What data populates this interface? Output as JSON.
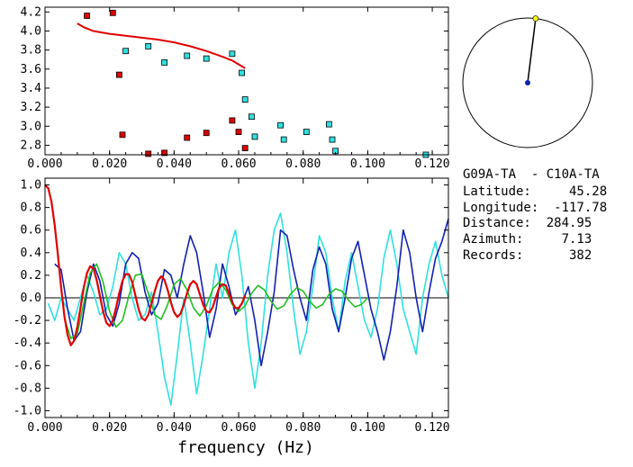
{
  "info": {
    "pair": "G09A-TA  - C10A-TA",
    "lines": [
      "Latitude:     45.28",
      "Longitude:  -117.78",
      "Distance:  284.95",
      "Azimuth:     7.13",
      "Records:      382"
    ]
  },
  "colors": {
    "red": "#e00000",
    "cyan": "#30e0e0",
    "blue": "#1020b0",
    "green": "#20c020",
    "compass_tip": "#ffff00",
    "compass_center": "#1020b0"
  },
  "compass": {
    "azimuth_deg": 7.13
  },
  "chart_data": [
    {
      "type": "scatter",
      "title": "",
      "xlim": [
        0,
        0.125
      ],
      "ylim": [
        2.7,
        4.25
      ],
      "x_ticks": [
        "0.000",
        "0.020",
        "0.040",
        "0.060",
        "0.080",
        "0.100",
        "0.120"
      ],
      "y_ticks": [
        "2.8",
        "3.0",
        "3.2",
        "3.4",
        "3.6",
        "3.8",
        "4.0",
        "4.2"
      ],
      "series": [
        {
          "kind": "points",
          "color": "red",
          "points": [
            [
              0.013,
              4.16
            ],
            [
              0.021,
              4.19
            ],
            [
              0.023,
              3.54
            ],
            [
              0.024,
              2.91
            ],
            [
              0.032,
              2.71
            ],
            [
              0.037,
              2.72
            ],
            [
              0.044,
              2.88
            ],
            [
              0.05,
              2.93
            ],
            [
              0.058,
              3.06
            ],
            [
              0.06,
              2.94
            ],
            [
              0.062,
              2.77
            ]
          ]
        },
        {
          "kind": "points",
          "color": "cyan",
          "points": [
            [
              0.025,
              3.79
            ],
            [
              0.032,
              3.84
            ],
            [
              0.037,
              3.67
            ],
            [
              0.044,
              3.74
            ],
            [
              0.05,
              3.71
            ],
            [
              0.058,
              3.76
            ],
            [
              0.061,
              3.56
            ],
            [
              0.062,
              3.28
            ],
            [
              0.064,
              3.1
            ],
            [
              0.065,
              2.89
            ],
            [
              0.073,
              3.01
            ],
            [
              0.074,
              2.86
            ],
            [
              0.081,
              2.94
            ],
            [
              0.088,
              3.02
            ],
            [
              0.089,
              2.86
            ],
            [
              0.09,
              2.74
            ],
            [
              0.118,
              2.7
            ]
          ]
        },
        {
          "kind": "line",
          "color": "red",
          "points": [
            [
              0.01,
              4.08
            ],
            [
              0.012,
              4.04
            ],
            [
              0.015,
              4.0
            ],
            [
              0.02,
              3.97
            ],
            [
              0.025,
              3.95
            ],
            [
              0.03,
              3.93
            ],
            [
              0.035,
              3.91
            ],
            [
              0.04,
              3.88
            ],
            [
              0.045,
              3.84
            ],
            [
              0.05,
              3.79
            ],
            [
              0.055,
              3.73
            ],
            [
              0.058,
              3.69
            ],
            [
              0.06,
              3.65
            ],
            [
              0.062,
              3.61
            ]
          ]
        }
      ]
    },
    {
      "type": "line",
      "xlabel": "frequency (Hz)",
      "xlim": [
        0,
        0.125
      ],
      "ylim": [
        -1.06,
        1.06
      ],
      "x_ticks": [
        "0.000",
        "0.020",
        "0.040",
        "0.060",
        "0.080",
        "0.100",
        "0.120"
      ],
      "y_ticks": [
        "1.0",
        "0.8",
        "0.6",
        "0.4",
        "0.2",
        "0.0",
        "-0.2",
        "-0.4",
        "-0.6",
        "-0.8",
        "-1.0"
      ],
      "series": [
        {
          "color": "red",
          "x": [
            0,
            0.001,
            0.002,
            0.003,
            0.004,
            0.005,
            0.006,
            0.007,
            0.008,
            0.009,
            0.01,
            0.011,
            0.012,
            0.013,
            0.014,
            0.015,
            0.016,
            0.017,
            0.018,
            0.019,
            0.02,
            0.021,
            0.022,
            0.023,
            0.024,
            0.025,
            0.026,
            0.027,
            0.028,
            0.029,
            0.03,
            0.031,
            0.032,
            0.033,
            0.034,
            0.035,
            0.036,
            0.037,
            0.038,
            0.039,
            0.04,
            0.041,
            0.042,
            0.043,
            0.044,
            0.045,
            0.046,
            0.047,
            0.048,
            0.049,
            0.05,
            0.051,
            0.052,
            0.053,
            0.054,
            0.055,
            0.056,
            0.057,
            0.058,
            0.059,
            0.06,
            0.061,
            0.062
          ],
          "y": [
            1.0,
            0.97,
            0.85,
            0.64,
            0.38,
            0.09,
            -0.16,
            -0.33,
            -0.42,
            -0.38,
            -0.26,
            -0.09,
            0.09,
            0.22,
            0.28,
            0.26,
            0.16,
            0.02,
            -0.12,
            -0.22,
            -0.25,
            -0.2,
            -0.09,
            0.04,
            0.15,
            0.21,
            0.21,
            0.14,
            0.02,
            -0.1,
            -0.18,
            -0.2,
            -0.15,
            -0.05,
            0.06,
            0.15,
            0.19,
            0.16,
            0.07,
            -0.04,
            -0.13,
            -0.17,
            -0.14,
            -0.06,
            0.04,
            0.12,
            0.15,
            0.12,
            0.03,
            -0.06,
            -0.12,
            -0.13,
            -0.08,
            0.01,
            0.09,
            0.12,
            0.11,
            0.04,
            -0.04,
            -0.09,
            -0.09,
            -0.05,
            0.02
          ]
        },
        {
          "color": "green",
          "x": [
            0.006,
            0.008,
            0.01,
            0.012,
            0.014,
            0.016,
            0.018,
            0.02,
            0.022,
            0.024,
            0.026,
            0.028,
            0.03,
            0.032,
            0.034,
            0.036,
            0.038,
            0.04,
            0.042,
            0.044,
            0.046,
            0.048,
            0.05,
            0.052,
            0.054,
            0.056,
            0.058,
            0.06,
            0.062,
            0.064,
            0.066,
            0.068,
            0.07,
            0.072,
            0.074,
            0.076,
            0.078,
            0.08,
            0.082,
            0.084,
            0.086,
            0.088,
            0.09,
            0.092,
            0.094,
            0.096,
            0.098,
            0.1
          ],
          "y": [
            -0.18,
            -0.36,
            -0.32,
            -0.05,
            0.22,
            0.3,
            0.14,
            -0.12,
            -0.26,
            -0.2,
            0.02,
            0.2,
            0.21,
            0.04,
            -0.15,
            -0.19,
            -0.06,
            0.12,
            0.17,
            0.07,
            -0.09,
            -0.16,
            -0.07,
            0.08,
            0.14,
            0.07,
            -0.06,
            -0.12,
            -0.07,
            0.04,
            0.11,
            0.07,
            -0.03,
            -0.1,
            -0.07,
            0.03,
            0.09,
            0.06,
            -0.03,
            -0.09,
            -0.06,
            0.03,
            0.08,
            0.06,
            -0.02,
            -0.08,
            -0.06,
            0.0
          ]
        },
        {
          "color": "blue",
          "x": [
            0.003,
            0.005,
            0.007,
            0.009,
            0.011,
            0.013,
            0.015,
            0.017,
            0.019,
            0.021,
            0.023,
            0.025,
            0.027,
            0.029,
            0.031,
            0.033,
            0.035,
            0.037,
            0.039,
            0.041,
            0.043,
            0.045,
            0.047,
            0.049,
            0.051,
            0.053,
            0.055,
            0.057,
            0.059,
            0.061,
            0.063,
            0.065,
            0.067,
            0.069,
            0.071,
            0.073,
            0.075,
            0.077,
            0.079,
            0.081,
            0.083,
            0.085,
            0.087,
            0.089,
            0.091,
            0.093,
            0.095,
            0.097,
            0.099,
            0.101,
            0.103,
            0.105,
            0.107,
            0.109,
            0.111,
            0.113,
            0.115,
            0.117,
            0.119,
            0.121,
            0.123,
            0.125
          ],
          "y": [
            0.3,
            0.25,
            -0.1,
            -0.38,
            -0.3,
            0.05,
            0.3,
            0.15,
            -0.15,
            -0.25,
            -0.05,
            0.3,
            0.4,
            0.35,
            0.05,
            -0.15,
            -0.05,
            0.25,
            0.2,
            0.0,
            0.3,
            0.55,
            0.4,
            0.05,
            -0.35,
            -0.1,
            0.3,
            0.1,
            -0.15,
            -0.05,
            0.1,
            -0.2,
            -0.6,
            -0.3,
            0.05,
            0.6,
            0.55,
            0.25,
            0.0,
            -0.2,
            0.25,
            0.45,
            0.3,
            -0.1,
            -0.3,
            0.0,
            0.35,
            0.5,
            0.2,
            -0.1,
            -0.3,
            -0.55,
            -0.3,
            0.1,
            0.6,
            0.4,
            0.0,
            -0.3,
            0.05,
            0.35,
            0.5,
            0.7
          ]
        },
        {
          "color": "cyan",
          "x": [
            0.001,
            0.003,
            0.005,
            0.007,
            0.009,
            0.011,
            0.013,
            0.015,
            0.017,
            0.019,
            0.021,
            0.023,
            0.025,
            0.027,
            0.029,
            0.031,
            0.033,
            0.035,
            0.037,
            0.039,
            0.041,
            0.043,
            0.045,
            0.047,
            0.049,
            0.051,
            0.053,
            0.055,
            0.057,
            0.059,
            0.061,
            0.063,
            0.065,
            0.067,
            0.069,
            0.071,
            0.073,
            0.075,
            0.077,
            0.079,
            0.081,
            0.083,
            0.085,
            0.087,
            0.089,
            0.091,
            0.093,
            0.095,
            0.097,
            0.099,
            0.101,
            0.103,
            0.105,
            0.107,
            0.109,
            0.111,
            0.113,
            0.115,
            0.117,
            0.119,
            0.121,
            0.123,
            0.125
          ],
          "y": [
            -0.05,
            -0.2,
            0.0,
            -0.1,
            -0.2,
            0.0,
            0.2,
            0.05,
            -0.15,
            -0.1,
            0.1,
            0.4,
            0.3,
            0.0,
            -0.2,
            -0.15,
            0.05,
            -0.3,
            -0.7,
            -0.95,
            -0.5,
            0.0,
            -0.4,
            -0.85,
            -0.5,
            -0.1,
            0.3,
            0.0,
            0.4,
            0.6,
            0.2,
            -0.4,
            -0.8,
            -0.4,
            0.2,
            0.6,
            0.75,
            0.4,
            -0.1,
            -0.5,
            -0.3,
            0.1,
            0.55,
            0.4,
            0.0,
            -0.3,
            0.15,
            0.4,
            0.1,
            -0.2,
            -0.35,
            -0.1,
            0.35,
            0.6,
            0.3,
            -0.1,
            -0.3,
            -0.5,
            0.0,
            0.3,
            0.5,
            0.2,
            0.0
          ]
        }
      ]
    }
  ]
}
